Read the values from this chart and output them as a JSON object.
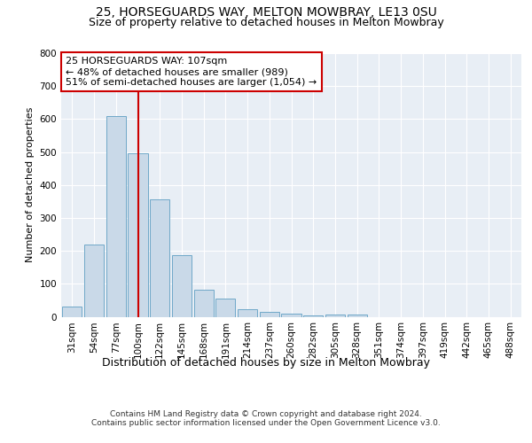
{
  "title1": "25, HORSEGUARDS WAY, MELTON MOWBRAY, LE13 0SU",
  "title2": "Size of property relative to detached houses in Melton Mowbray",
  "xlabel": "Distribution of detached houses by size in Melton Mowbray",
  "ylabel": "Number of detached properties",
  "categories": [
    "31sqm",
    "54sqm",
    "77sqm",
    "100sqm",
    "122sqm",
    "145sqm",
    "168sqm",
    "191sqm",
    "214sqm",
    "237sqm",
    "260sqm",
    "282sqm",
    "305sqm",
    "328sqm",
    "351sqm",
    "374sqm",
    "397sqm",
    "419sqm",
    "442sqm",
    "465sqm",
    "488sqm"
  ],
  "values": [
    32,
    218,
    610,
    496,
    355,
    188,
    83,
    55,
    24,
    15,
    10,
    5,
    8,
    7,
    0,
    0,
    0,
    0,
    0,
    0,
    0
  ],
  "bar_color": "#c9d9e8",
  "bar_edge_color": "#6fa8c8",
  "bar_width": 0.9,
  "vline_color": "#cc0000",
  "vline_x": 3.0,
  "annotation_text": "25 HORSEGUARDS WAY: 107sqm\n← 48% of detached houses are smaller (989)\n51% of semi-detached houses are larger (1,054) →",
  "annotation_box_color": "#ffffff",
  "annotation_box_edge": "#cc0000",
  "ylim": [
    0,
    800
  ],
  "yticks": [
    0,
    100,
    200,
    300,
    400,
    500,
    600,
    700,
    800
  ],
  "plot_bg_color": "#e8eef5",
  "footer1": "Contains HM Land Registry data © Crown copyright and database right 2024.",
  "footer2": "Contains public sector information licensed under the Open Government Licence v3.0.",
  "title1_fontsize": 10,
  "title2_fontsize": 9,
  "xlabel_fontsize": 9,
  "ylabel_fontsize": 8,
  "tick_fontsize": 7.5,
  "annotation_fontsize": 8,
  "footer_fontsize": 6.5
}
